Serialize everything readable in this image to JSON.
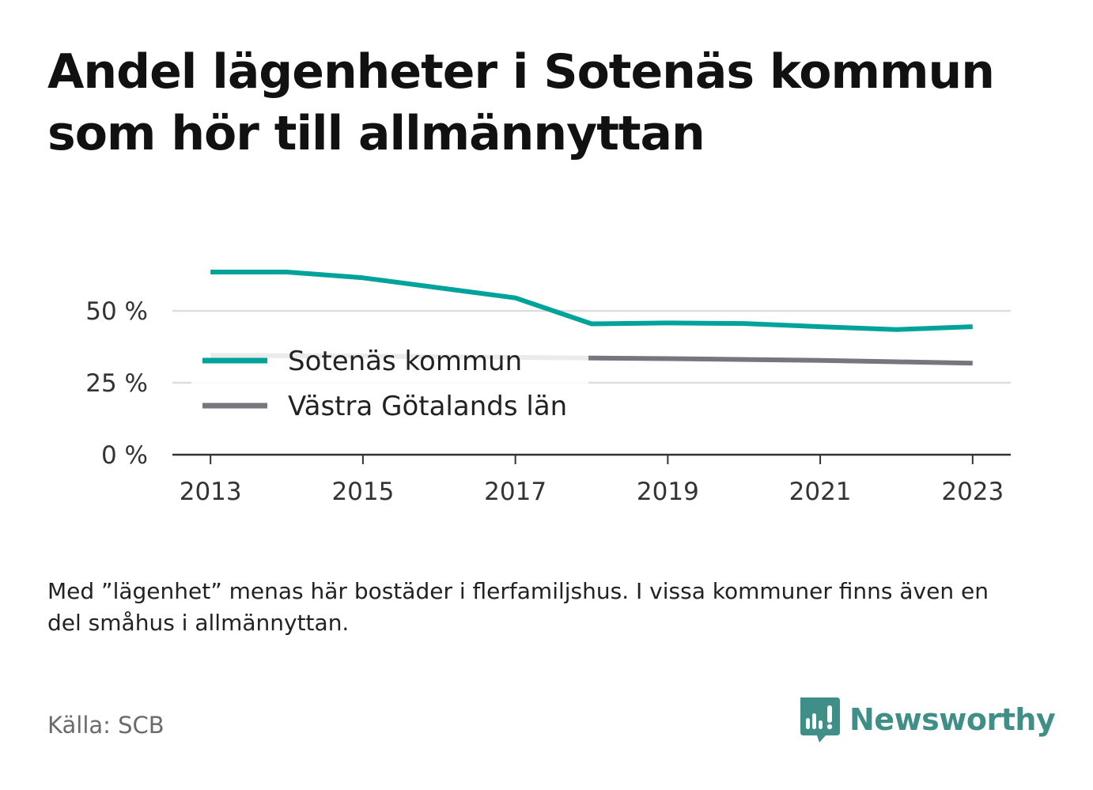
{
  "title": "Andel lägenheter i Sotenäs kommun som hör till allmännyttan",
  "note": "Med ”lägenhet” menas här bostäder i flerfamiljshus. I vissa kommuner finns även en del småhus i allmännyttan.",
  "source": "Källa: SCB",
  "brand": {
    "name": "Newsworthy",
    "color": "#3f8f88",
    "icon": "bar-chart-speech-bubble-icon"
  },
  "chart_data": {
    "type": "line",
    "x": [
      2013,
      2014,
      2015,
      2016,
      2017,
      2018,
      2019,
      2020,
      2021,
      2022,
      2023
    ],
    "series": [
      {
        "name": "Sotenäs kommun",
        "color": "#00a39a",
        "values": [
          63.5,
          63.5,
          61.5,
          58,
          54.5,
          45.5,
          45.8,
          45.6,
          44.5,
          43.5,
          44.5
        ]
      },
      {
        "name": "Västra Götalands län",
        "color": "#77767e",
        "values": [
          34.5,
          34.4,
          34.3,
          34.1,
          33.8,
          33.6,
          33.4,
          33.1,
          32.8,
          32.3,
          31.8
        ]
      }
    ],
    "xticks": [
      2013,
      2015,
      2017,
      2019,
      2021,
      2023
    ],
    "yticks": [
      {
        "value": 0,
        "label": "0 %"
      },
      {
        "value": 25,
        "label": "25 %"
      },
      {
        "value": 50,
        "label": "50 %"
      }
    ],
    "xlim": [
      2012.5,
      2023.5
    ],
    "ylim": [
      0,
      63.5
    ],
    "grid": true,
    "legend_position": "center-left"
  }
}
